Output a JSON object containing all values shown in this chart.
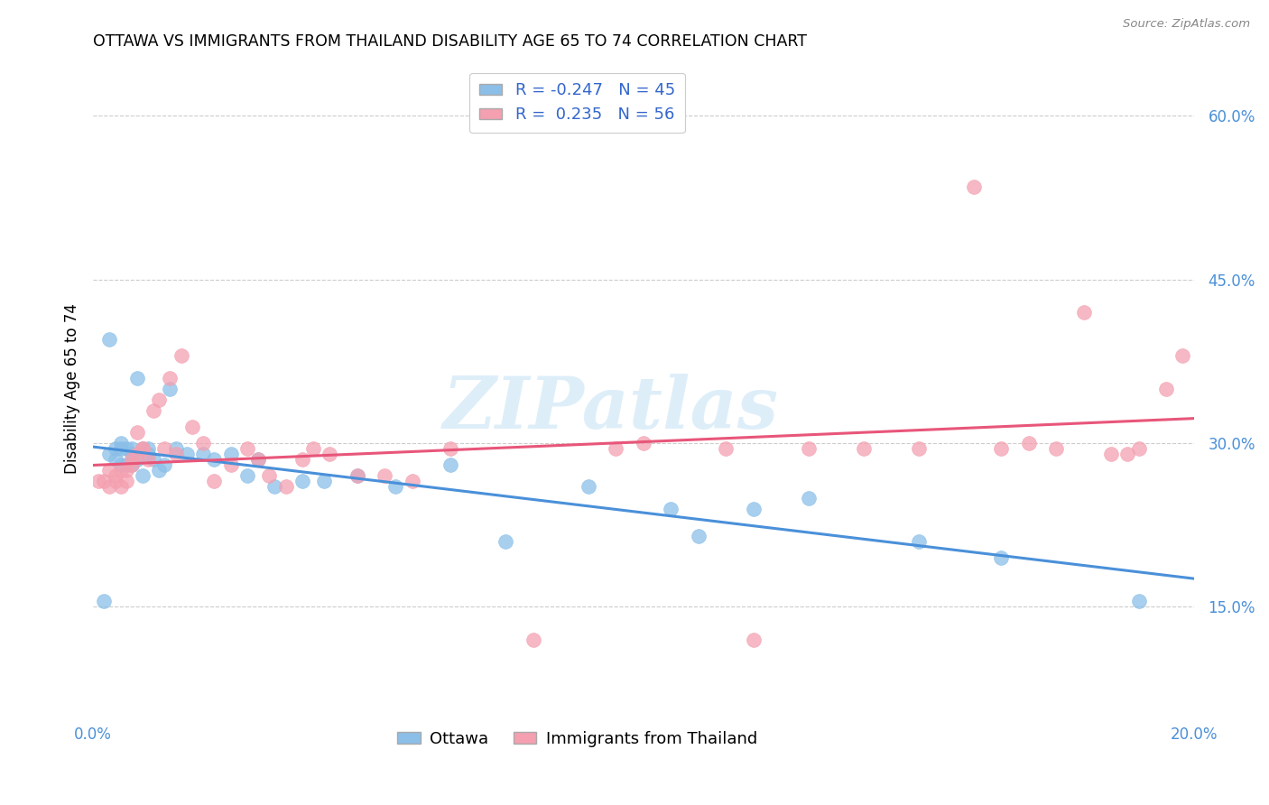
{
  "title": "OTTAWA VS IMMIGRANTS FROM THAILAND DISABILITY AGE 65 TO 74 CORRELATION CHART",
  "source": "Source: ZipAtlas.com",
  "ylabel": "Disability Age 65 to 74",
  "xlim": [
    0.0,
    0.2
  ],
  "ylim": [
    0.05,
    0.65
  ],
  "yticks": [
    0.15,
    0.3,
    0.45,
    0.6
  ],
  "ytick_labels": [
    "15.0%",
    "30.0%",
    "45.0%",
    "60.0%"
  ],
  "xticks": [
    0.0,
    0.04,
    0.08,
    0.12,
    0.16,
    0.2
  ],
  "xtick_labels": [
    "0.0%",
    "",
    "",
    "",
    "",
    "20.0%"
  ],
  "ottawa_color": "#8BBFE8",
  "thailand_color": "#F4A0B0",
  "trend_ottawa_color": "#4A90D9",
  "trend_thailand_color": "#E8567A",
  "tick_color": "#4A90D9",
  "R_ottawa": -0.247,
  "N_ottawa": 45,
  "R_thailand": 0.235,
  "N_thailand": 56,
  "watermark": "ZIPatlas",
  "ottawa_x": [
    0.002,
    0.003,
    0.003,
    0.004,
    0.004,
    0.005,
    0.005,
    0.005,
    0.006,
    0.006,
    0.007,
    0.007,
    0.007,
    0.008,
    0.008,
    0.009,
    0.009,
    0.01,
    0.01,
    0.011,
    0.012,
    0.013,
    0.014,
    0.015,
    0.017,
    0.02,
    0.022,
    0.025,
    0.028,
    0.03,
    0.033,
    0.038,
    0.042,
    0.048,
    0.055,
    0.065,
    0.075,
    0.09,
    0.105,
    0.11,
    0.12,
    0.13,
    0.15,
    0.165,
    0.19
  ],
  "ottawa_y": [
    0.155,
    0.29,
    0.395,
    0.285,
    0.295,
    0.295,
    0.28,
    0.3,
    0.295,
    0.28,
    0.295,
    0.28,
    0.29,
    0.36,
    0.285,
    0.295,
    0.27,
    0.295,
    0.29,
    0.285,
    0.275,
    0.28,
    0.35,
    0.295,
    0.29,
    0.29,
    0.285,
    0.29,
    0.27,
    0.285,
    0.26,
    0.265,
    0.265,
    0.27,
    0.26,
    0.28,
    0.21,
    0.26,
    0.24,
    0.215,
    0.24,
    0.25,
    0.21,
    0.195,
    0.155
  ],
  "thailand_x": [
    0.001,
    0.002,
    0.003,
    0.003,
    0.004,
    0.004,
    0.005,
    0.005,
    0.006,
    0.006,
    0.007,
    0.007,
    0.008,
    0.008,
    0.009,
    0.009,
    0.01,
    0.011,
    0.012,
    0.013,
    0.014,
    0.015,
    0.016,
    0.018,
    0.02,
    0.022,
    0.025,
    0.028,
    0.03,
    0.032,
    0.035,
    0.038,
    0.04,
    0.043,
    0.048,
    0.053,
    0.058,
    0.065,
    0.08,
    0.095,
    0.1,
    0.115,
    0.12,
    0.13,
    0.14,
    0.15,
    0.16,
    0.165,
    0.17,
    0.175,
    0.18,
    0.185,
    0.188,
    0.19,
    0.195,
    0.198
  ],
  "thailand_y": [
    0.265,
    0.265,
    0.26,
    0.275,
    0.265,
    0.27,
    0.26,
    0.275,
    0.265,
    0.275,
    0.28,
    0.285,
    0.31,
    0.29,
    0.295,
    0.295,
    0.285,
    0.33,
    0.34,
    0.295,
    0.36,
    0.29,
    0.38,
    0.315,
    0.3,
    0.265,
    0.28,
    0.295,
    0.285,
    0.27,
    0.26,
    0.285,
    0.295,
    0.29,
    0.27,
    0.27,
    0.265,
    0.295,
    0.12,
    0.295,
    0.3,
    0.295,
    0.12,
    0.295,
    0.295,
    0.295,
    0.535,
    0.295,
    0.3,
    0.295,
    0.42,
    0.29,
    0.29,
    0.295,
    0.35,
    0.38
  ]
}
